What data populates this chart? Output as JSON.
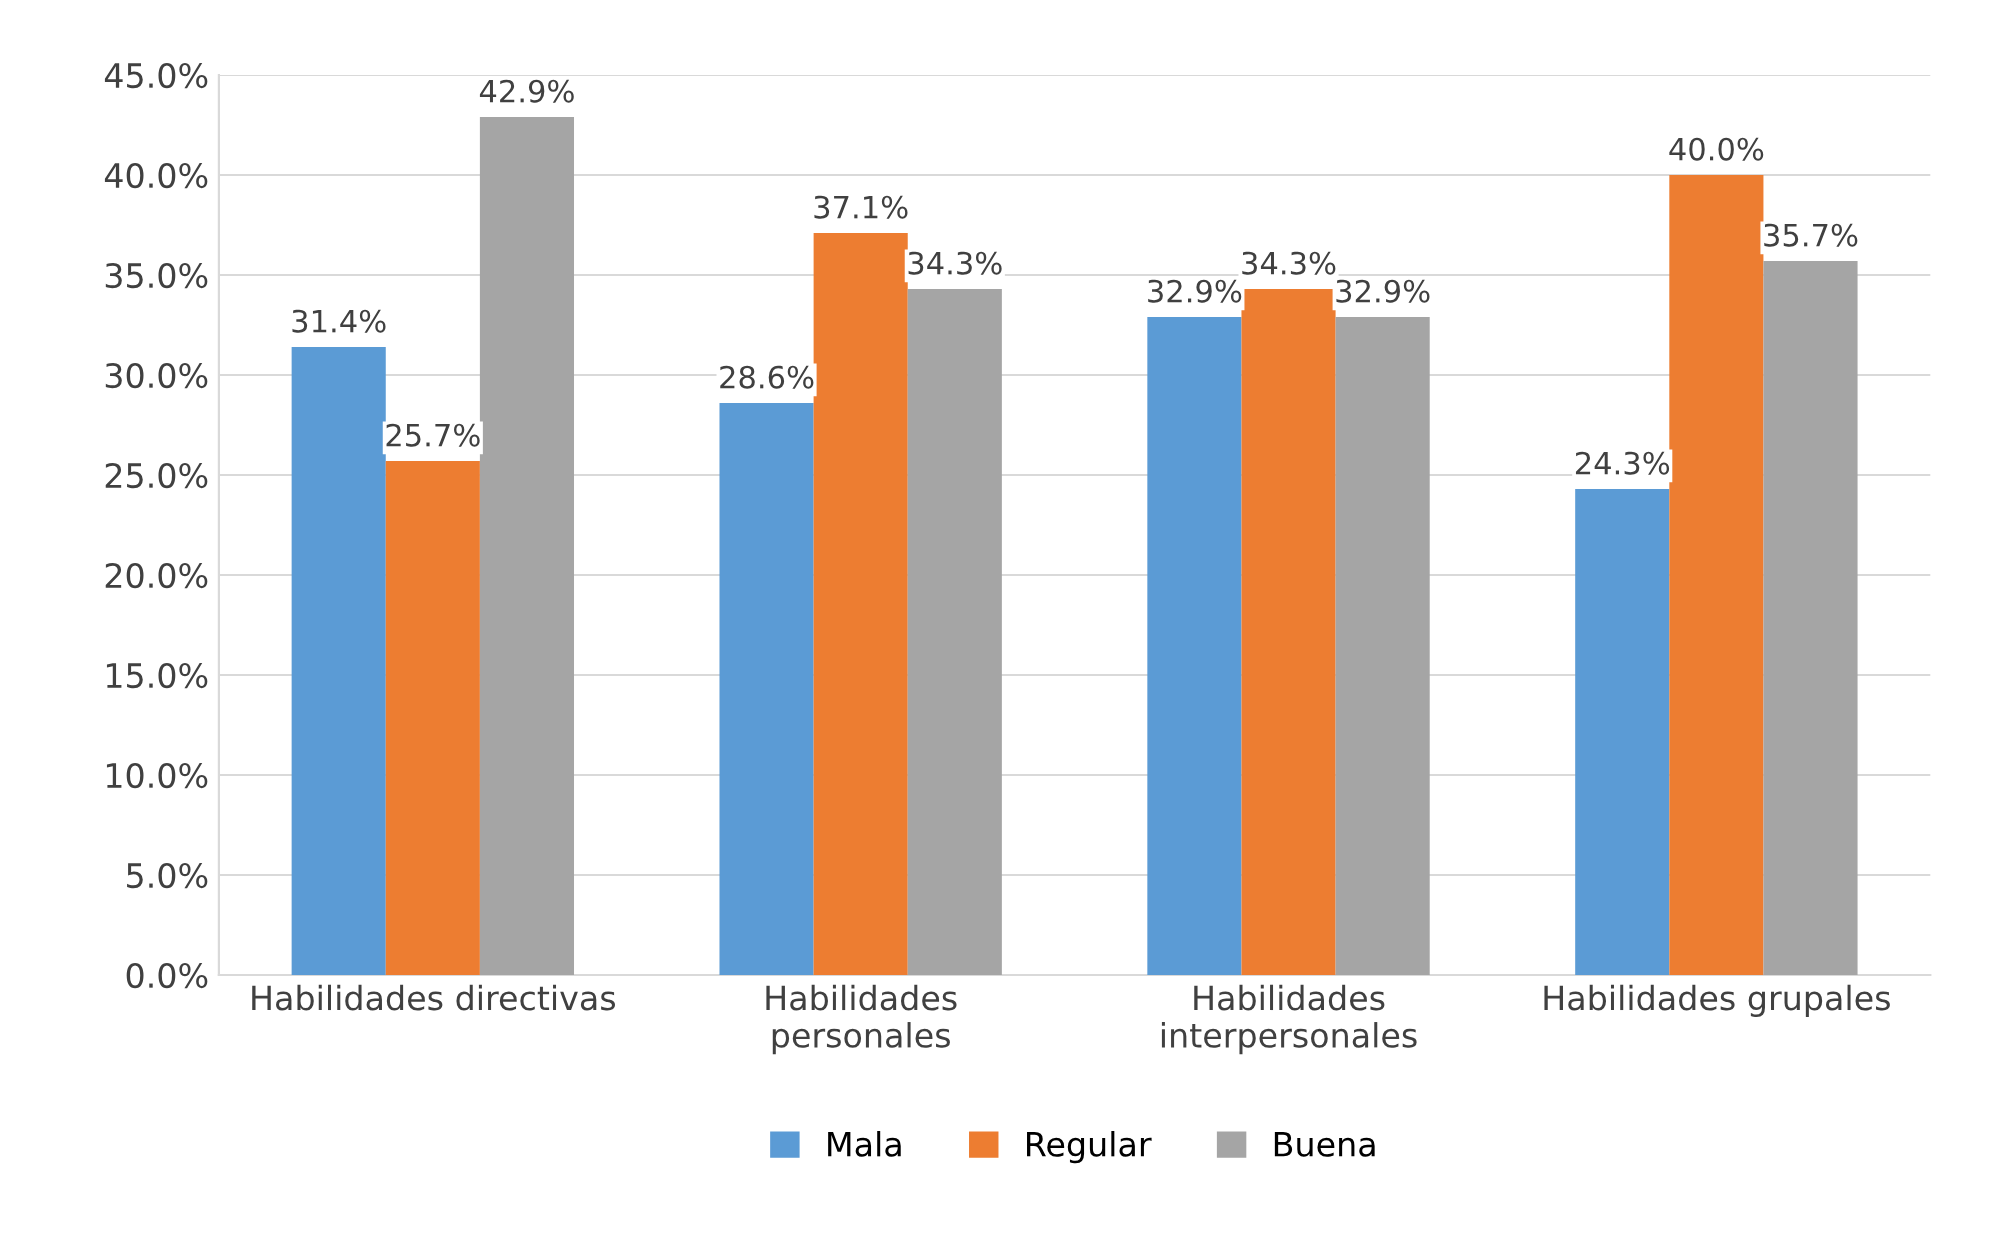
{
  "chart_data": {
    "type": "bar",
    "categories": [
      "Habilidades directivas",
      "Habilidades\npersonales",
      "Habilidades\ninterpersonales",
      "Habilidades grupales"
    ],
    "series": [
      {
        "name": "Mala",
        "color": "#5b9bd5",
        "values": [
          31.4,
          28.6,
          32.9,
          24.3
        ],
        "value_labels": [
          "31.4%",
          "28.6%",
          "32.9%",
          "24.3%"
        ]
      },
      {
        "name": "Regular",
        "color": "#ed7d31",
        "values": [
          25.7,
          37.1,
          34.3,
          40.0
        ],
        "value_labels": [
          "25.7%",
          "37.1%",
          "34.3%",
          "40.0%"
        ]
      },
      {
        "name": "Buena",
        "color": "#a5a5a5",
        "values": [
          42.9,
          34.3,
          32.9,
          35.7
        ],
        "value_labels": [
          "42.9%",
          "34.3%",
          "32.9%",
          "35.7%"
        ]
      }
    ],
    "ylim": [
      0,
      45
    ],
    "yticks": [
      {
        "value": 0,
        "label": "0.0%"
      },
      {
        "value": 5,
        "label": "5.0%"
      },
      {
        "value": 10,
        "label": "10.0%"
      },
      {
        "value": 15,
        "label": "15.0%"
      },
      {
        "value": 20,
        "label": "20.0%"
      },
      {
        "value": 25,
        "label": "25.0%"
      },
      {
        "value": 30,
        "label": "30.0%"
      },
      {
        "value": 35,
        "label": "35.0%"
      },
      {
        "value": 40,
        "label": "40.0%"
      },
      {
        "value": 45,
        "label": "45.0%"
      }
    ],
    "grid": "y",
    "legend": "bottom"
  }
}
